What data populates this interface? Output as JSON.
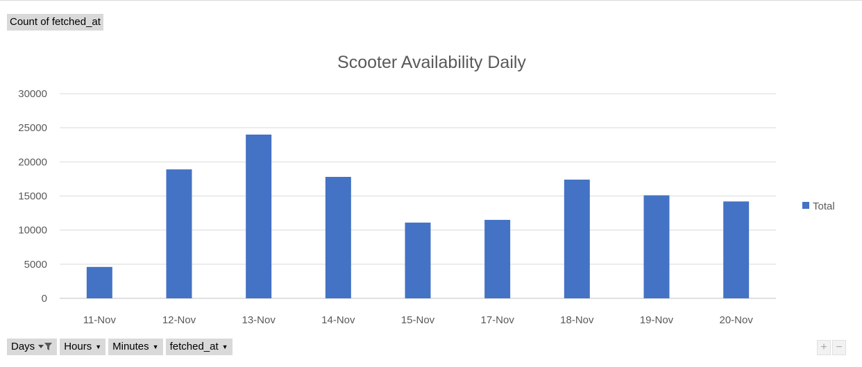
{
  "pivot": {
    "value_field": "Count of fetched_at",
    "axis_fields": [
      {
        "label": "Days",
        "icon": "filter-dropdown-icon"
      },
      {
        "label": "Hours",
        "icon": "dropdown-arrow-icon"
      },
      {
        "label": "Minutes",
        "icon": "dropdown-arrow-icon"
      },
      {
        "label": "fetched_at",
        "icon": "dropdown-arrow-icon"
      }
    ],
    "zoom_in": "+",
    "zoom_out": "−"
  },
  "chart_data": {
    "type": "bar",
    "title": "Scooter Availability Daily",
    "categories": [
      "11-Nov",
      "12-Nov",
      "13-Nov",
      "14-Nov",
      "15-Nov",
      "17-Nov",
      "18-Nov",
      "19-Nov",
      "20-Nov"
    ],
    "series": [
      {
        "name": "Total",
        "values": [
          4600,
          18900,
          24000,
          17800,
          11100,
          11500,
          17400,
          15100,
          14200
        ]
      }
    ],
    "yticks": [
      0,
      5000,
      10000,
      15000,
      20000,
      25000,
      30000
    ],
    "ylim": [
      0,
      30000
    ],
    "grid": true,
    "legend": "right",
    "colors": {
      "bar": "#4472C4",
      "grid": "#d9d9d9",
      "axis": "#bfbfbf"
    }
  }
}
